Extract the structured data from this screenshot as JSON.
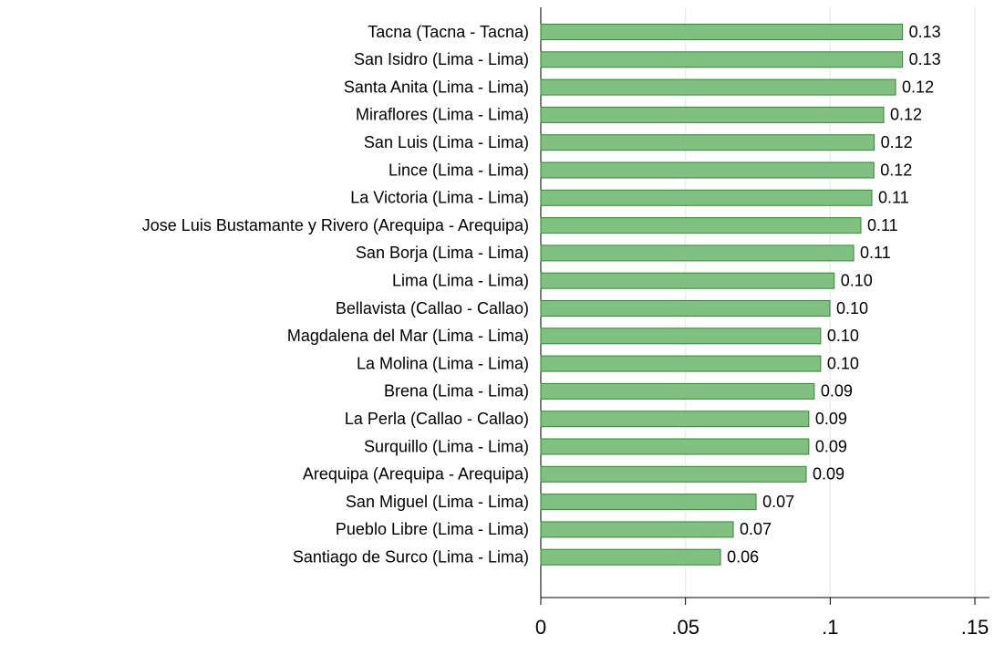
{
  "chart_data": {
    "type": "hbar",
    "categories": [
      "Tacna (Tacna - Tacna)",
      "San Isidro (Lima - Lima)",
      "Santa Anita (Lima - Lima)",
      "Miraflores (Lima - Lima)",
      "San Luis (Lima - Lima)",
      "Lince (Lima - Lima)",
      "La Victoria (Lima - Lima)",
      "Jose Luis Bustamante y Rivero (Arequipa - Arequipa)",
      "San Borja (Lima - Lima)",
      "Lima (Lima - Lima)",
      "Bellavista (Callao - Callao)",
      "Magdalena del Mar (Lima - Lima)",
      "La Molina (Lima - Lima)",
      "Brena (Lima - Lima)",
      "La Perla (Callao - Callao)",
      "Surquillo (Lima - Lima)",
      "Arequipa (Arequipa - Arequipa)",
      "San Miguel (Lima - Lima)",
      "Pueblo Libre (Lima - Lima)",
      "Santiago de Surco (Lima - Lima)"
    ],
    "values": [
      0.125,
      0.125,
      0.1226,
      0.1185,
      0.1152,
      0.1151,
      0.1144,
      0.1106,
      0.1081,
      0.1014,
      0.0999,
      0.0967,
      0.0967,
      0.0945,
      0.0926,
      0.0926,
      0.0917,
      0.0744,
      0.0665,
      0.0621
    ],
    "value_labels": [
      "0.13",
      "0.13",
      "0.12",
      "0.12",
      "0.12",
      "0.12",
      "0.11",
      "0.11",
      "0.11",
      "0.10",
      "0.10",
      "0.10",
      "0.10",
      "0.09",
      "0.09",
      "0.09",
      "0.09",
      "0.07",
      "0.07",
      "0.06"
    ],
    "color": "#80c080",
    "edge_color": "#2e8b2e",
    "xlim": [
      0,
      0.155
    ],
    "xticks": [
      0,
      {
        "value": 0.05,
        "label": ".05"
      },
      {
        "value": 0.1,
        "label": ".1"
      },
      {
        "value": 0.15,
        "label": ".15"
      }
    ],
    "grid": true
  }
}
